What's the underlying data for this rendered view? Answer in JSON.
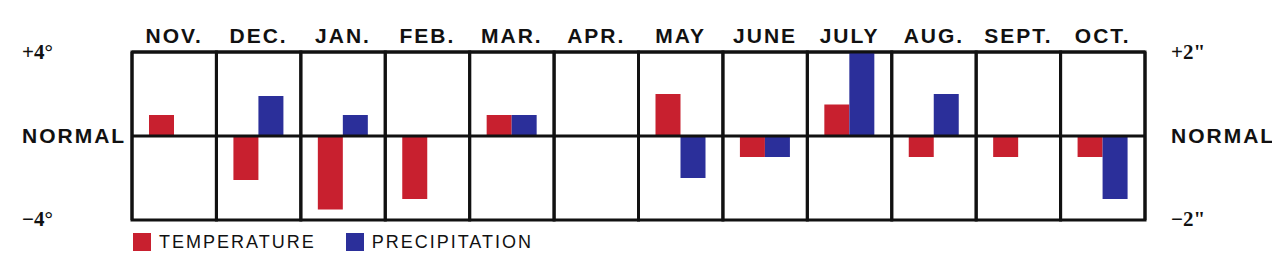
{
  "chart_data": {
    "type": "bar",
    "categories": [
      "NOV.",
      "DEC.",
      "JAN.",
      "FEB.",
      "MAR.",
      "APR.",
      "MAY",
      "JUNE",
      "JULY",
      "AUG.",
      "SEPT.",
      "OCT."
    ],
    "series": [
      {
        "name": "TEMPERATURE",
        "color": "#c8202f",
        "values": [
          1.0,
          -2.1,
          -3.5,
          -3.0,
          1.0,
          0,
          2.0,
          -1.0,
          1.5,
          -1.0,
          -1.0,
          -1.0
        ]
      },
      {
        "name": "PRECIPITATION",
        "color": "#2b2f9a",
        "axis": "y2",
        "values": [
          0,
          0.95,
          0.5,
          0,
          0.5,
          0,
          -1.0,
          -0.5,
          2.0,
          1.0,
          0,
          -1.5
        ]
      }
    ],
    "ylim": [
      -4,
      4
    ],
    "yticks": [
      {
        "value": 4,
        "label": "+4°"
      },
      {
        "value": 0,
        "label": "NORMAL"
      },
      {
        "value": -4,
        "label": "−4°"
      }
    ],
    "y2lim": [
      -2,
      2
    ],
    "y2ticks": [
      {
        "value": 2,
        "label": "+2\""
      },
      {
        "value": 0,
        "label": "NORMAL"
      },
      {
        "value": -2,
        "label": "−2\""
      }
    ],
    "legend": "bottom left"
  }
}
